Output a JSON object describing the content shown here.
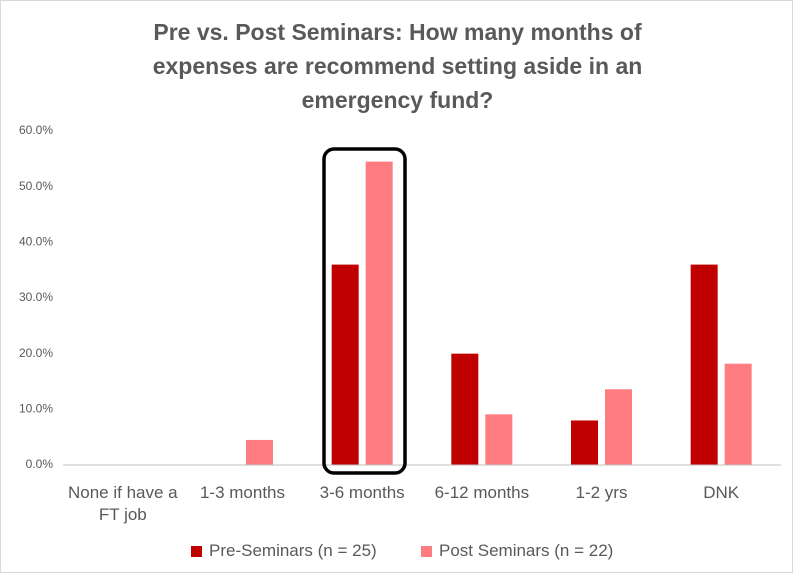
{
  "chart_data": {
    "type": "bar",
    "title": "Pre vs. Post Seminars: How many months of expenses are recommend setting aside in an emergency fund?",
    "categories": [
      "None if have a FT job",
      "1-3 months",
      "3-6 months",
      "6-12 months",
      "1-2 yrs",
      "DNK"
    ],
    "series": [
      {
        "name": "Pre-Seminars (n = 25)",
        "color": "#c00000",
        "values": [
          0,
          0,
          36,
          20,
          8,
          36
        ]
      },
      {
        "name": "Post Seminars (n = 22)",
        "color": "#ff7c80",
        "values": [
          0,
          4.5,
          54.5,
          9.1,
          13.6,
          18.2
        ]
      }
    ],
    "ylim": [
      0,
      60
    ],
    "yticks": [
      {
        "value": 0,
        "label": "0.0%"
      },
      {
        "value": 10,
        "label": "10.0%"
      },
      {
        "value": 20,
        "label": "20.0%"
      },
      {
        "value": 30,
        "label": "30.0%"
      },
      {
        "value": 40,
        "label": "40.0%"
      },
      {
        "value": 50,
        "label": "50.0%"
      },
      {
        "value": 60,
        "label": "60.0%"
      }
    ],
    "grid": false
  }
}
